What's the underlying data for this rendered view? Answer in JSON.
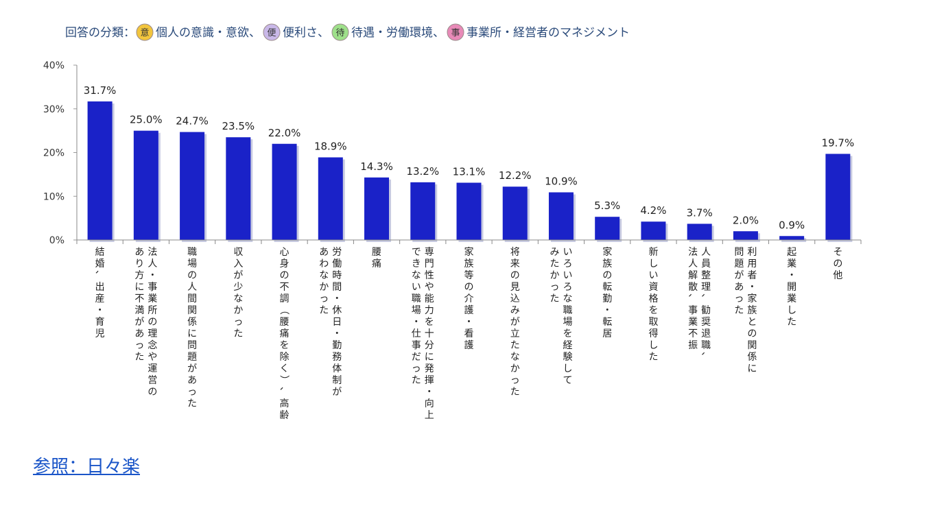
{
  "legend": {
    "prefix": "回答の分類：",
    "items": [
      {
        "badge": "意",
        "color": "#f2c53d",
        "label": "個人の意識・意欲、"
      },
      {
        "badge": "便",
        "color": "#c9b8e8",
        "label": "便利さ、"
      },
      {
        "badge": "待",
        "color": "#9ee08a",
        "label": "待遇・労働環境、"
      },
      {
        "badge": "事",
        "color": "#e88ab8",
        "label": "事業所・経営者のマネジメント"
      }
    ]
  },
  "chart_data": {
    "type": "bar",
    "ylim": [
      0,
      40
    ],
    "yticks": [
      0,
      10,
      20,
      30,
      40
    ],
    "ytick_labels": [
      "0%",
      "10%",
      "20%",
      "30%",
      "40%"
    ],
    "bar_color": "#1a22c8",
    "categories": [
      [
        "結婚、出産・育児"
      ],
      [
        "法人・事業所の理念や運営の",
        "あり方に不満があった"
      ],
      [
        "職場の人間関係に問題があった"
      ],
      [
        "収入が少なかった"
      ],
      [
        "心身の不調（腰痛を除く）、高齢"
      ],
      [
        "労働時間・休日・勤務体制が",
        "あわなかった"
      ],
      [
        "腰痛"
      ],
      [
        "専門性や能力を十分に発揮・向上",
        "できない職場・仕事だった"
      ],
      [
        "家族等の介護・看護"
      ],
      [
        "将来の見込みが立たなかった"
      ],
      [
        "いろいろな職場を経験して",
        "みたかった"
      ],
      [
        "家族の転勤・転居"
      ],
      [
        "新しい資格を取得した"
      ],
      [
        "人員整理、勧奨退職、",
        "法人解散、事業不振"
      ],
      [
        "利用者・家族との関係に",
        "問題があった"
      ],
      [
        "起業・開業した"
      ],
      [
        "その他"
      ]
    ],
    "values": [
      31.7,
      25.0,
      24.7,
      23.5,
      22.0,
      18.9,
      14.3,
      13.2,
      13.1,
      12.2,
      10.9,
      5.3,
      4.2,
      3.7,
      2.0,
      0.9,
      19.7
    ],
    "value_labels": [
      "31.7%",
      "25.0%",
      "24.7%",
      "23.5%",
      "22.0%",
      "18.9%",
      "14.3%",
      "13.2%",
      "13.1%",
      "12.2%",
      "10.9%",
      "5.3%",
      "4.2%",
      "3.7%",
      "2.0%",
      "0.9%",
      "19.7%"
    ]
  },
  "reference": {
    "label": "参照：日々楽"
  }
}
